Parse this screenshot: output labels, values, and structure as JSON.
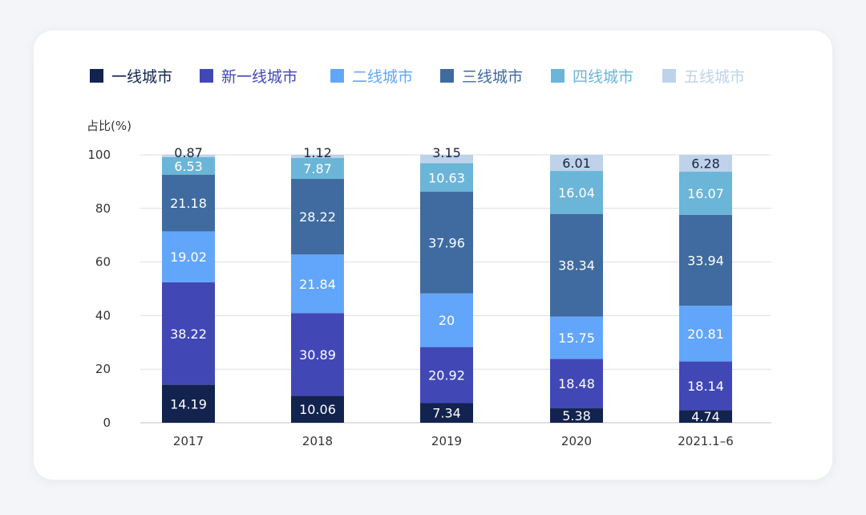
{
  "chart_data": {
    "type": "bar",
    "stacked": true,
    "ylabel": "占比(%)",
    "xlabel": "",
    "ylim": [
      0,
      100
    ],
    "yticks": [
      0,
      20,
      40,
      60,
      80,
      100
    ],
    "grid": true,
    "legend_position": "top",
    "categories": [
      "2017",
      "2018",
      "2019",
      "2020",
      "2021.1-6"
    ],
    "series": [
      {
        "name": "一线城市",
        "color": "#13234f",
        "label_color": "#ffffff",
        "values": [
          14.19,
          10.06,
          7.34,
          5.38,
          4.74
        ]
      },
      {
        "name": "新一线城市",
        "color": "#4148b6",
        "label_color": "#ffffff",
        "values": [
          38.22,
          30.89,
          20.92,
          18.48,
          18.14
        ]
      },
      {
        "name": "二线城市",
        "color": "#62a6fb",
        "label_color": "#ffffff",
        "values": [
          19.02,
          21.84,
          20,
          15.75,
          20.81
        ]
      },
      {
        "name": "三线城市",
        "color": "#3f6ba0",
        "label_color": "#ffffff",
        "values": [
          21.18,
          28.22,
          37.96,
          38.34,
          33.94
        ]
      },
      {
        "name": "四线城市",
        "color": "#6bb5d8",
        "label_color": "#ffffff",
        "values": [
          6.53,
          7.87,
          10.63,
          16.04,
          16.07
        ]
      },
      {
        "name": "五线城市",
        "color": "#bed3ea",
        "label_color": "#1a2440",
        "values": [
          0.87,
          1.12,
          3.15,
          6.01,
          6.28
        ]
      }
    ]
  }
}
